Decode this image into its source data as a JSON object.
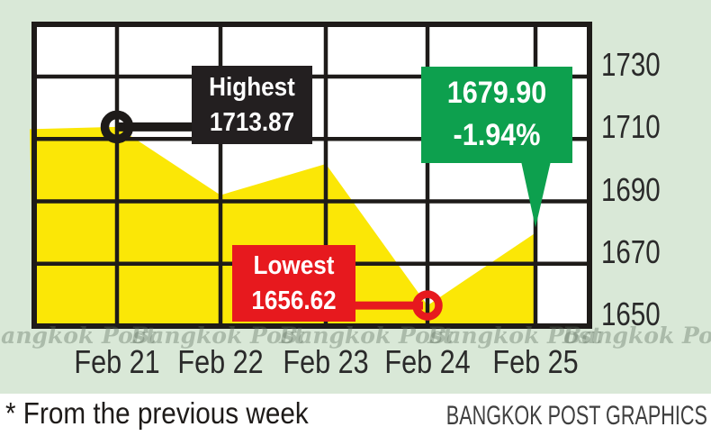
{
  "chart_data": {
    "type": "area",
    "x": [
      "Feb 21",
      "Feb 22",
      "Feb 23",
      "Feb 24",
      "Feb 25"
    ],
    "values": [
      1713.87,
      1692,
      1702,
      1656.62,
      1679.9
    ],
    "previous_week_close": 1713.15,
    "y_ticks": [
      "1730",
      "1710",
      "1690",
      "1670",
      "1650"
    ],
    "y_tick_values": [
      1730,
      1710,
      1690,
      1670,
      1650
    ],
    "ylim": [
      1650,
      1746.8
    ],
    "grid": true,
    "legend": false,
    "area_color": "#fbe706",
    "line_color": "#1e1b19"
  },
  "annotations": {
    "highest": {
      "label": "Highest",
      "value": "1713.87"
    },
    "lowest": {
      "label": "Lowest",
      "value": "1656.62"
    },
    "close": {
      "value": "1679.90",
      "change": "-1.94%"
    }
  },
  "watermark": "Bangkok Post",
  "footer": {
    "note": "* From the previous week",
    "credit": "BANGKOK POST GRAPHICS"
  },
  "colors": {
    "background": "#d9e8d7",
    "plot_background": "#ffffff",
    "area_yellow": "#fbe706",
    "ink_black": "#1e1b19",
    "highest_box": "#231f20",
    "lowest_box": "#e7191e",
    "close_box": "#0da04e",
    "axis_text": "#2a2a2a",
    "credit_text": "#3f3f3f"
  }
}
